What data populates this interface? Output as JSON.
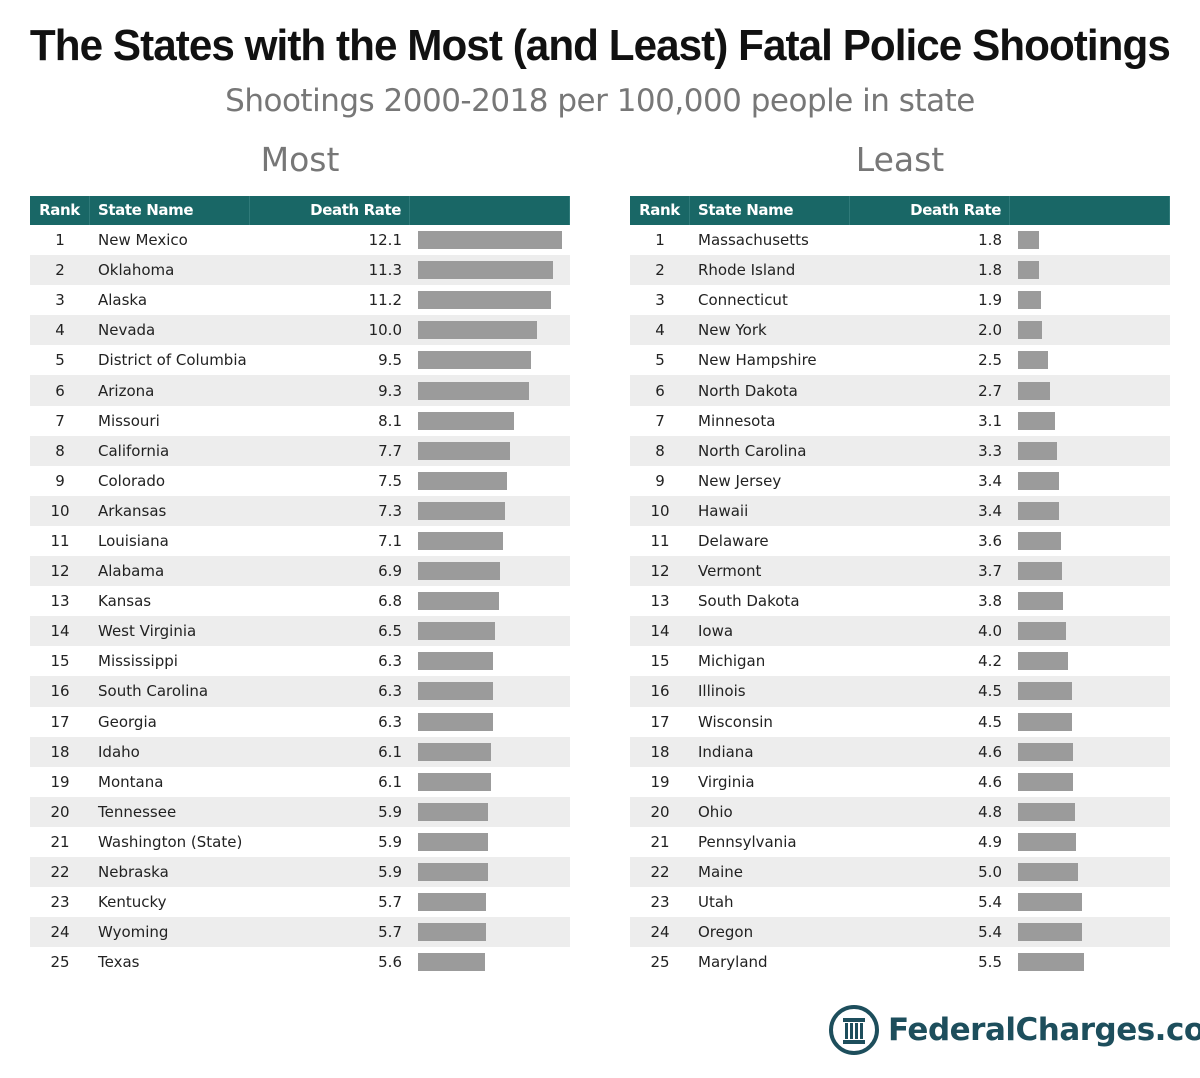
{
  "title": "The States with the Most (and Least) Fatal Police Shootings",
  "subtitle": "Shootings 2000-2018 per 100,000 people in state",
  "logo": "FederalCharges.com",
  "colors": {
    "header": "#196766",
    "bar": "#9b9b9b",
    "stripe": "#ededed",
    "logo": "#1d4e5c"
  },
  "chart_data": [
    {
      "type": "table",
      "title": "Most",
      "columns": [
        "Rank",
        "State Name",
        "Death Rate",
        ""
      ],
      "rows": [
        {
          "rank": "1",
          "state": "New Mexico",
          "rate": "12.1"
        },
        {
          "rank": "2",
          "state": "Oklahoma",
          "rate": "11.3"
        },
        {
          "rank": "3",
          "state": "Alaska",
          "rate": "11.2"
        },
        {
          "rank": "4",
          "state": "Nevada",
          "rate": "10.0"
        },
        {
          "rank": "5",
          "state": "District of Columbia",
          "rate": "9.5"
        },
        {
          "rank": "6",
          "state": "Arizona",
          "rate": "9.3"
        },
        {
          "rank": "7",
          "state": "Missouri",
          "rate": "8.1"
        },
        {
          "rank": "8",
          "state": "California",
          "rate": "7.7"
        },
        {
          "rank": "9",
          "state": "Colorado",
          "rate": "7.5"
        },
        {
          "rank": "10",
          "state": "Arkansas",
          "rate": "7.3"
        },
        {
          "rank": "11",
          "state": "Louisiana",
          "rate": "7.1"
        },
        {
          "rank": "12",
          "state": "Alabama",
          "rate": "6.9"
        },
        {
          "rank": "13",
          "state": "Kansas",
          "rate": "6.8"
        },
        {
          "rank": "14",
          "state": "West Virginia",
          "rate": "6.5"
        },
        {
          "rank": "15",
          "state": "Mississippi",
          "rate": "6.3"
        },
        {
          "rank": "16",
          "state": "South Carolina",
          "rate": "6.3"
        },
        {
          "rank": "17",
          "state": "Georgia",
          "rate": "6.3"
        },
        {
          "rank": "18",
          "state": "Idaho",
          "rate": "6.1"
        },
        {
          "rank": "19",
          "state": "Montana",
          "rate": "6.1"
        },
        {
          "rank": "20",
          "state": "Tennessee",
          "rate": "5.9"
        },
        {
          "rank": "21",
          "state": "Washington (State)",
          "rate": "5.9"
        },
        {
          "rank": "22",
          "state": "Nebraska",
          "rate": "5.9"
        },
        {
          "rank": "23",
          "state": "Kentucky",
          "rate": "5.7"
        },
        {
          "rank": "24",
          "state": "Wyoming",
          "rate": "5.7"
        },
        {
          "rank": "25",
          "state": "Texas",
          "rate": "5.6"
        }
      ]
    },
    {
      "type": "table",
      "title": "Least",
      "columns": [
        "Rank",
        "State Name",
        "Death Rate",
        ""
      ],
      "rows": [
        {
          "rank": "1",
          "state": "Massachusetts",
          "rate": "1.8"
        },
        {
          "rank": "2",
          "state": "Rhode Island",
          "rate": "1.8"
        },
        {
          "rank": "3",
          "state": "Connecticut",
          "rate": "1.9"
        },
        {
          "rank": "4",
          "state": "New York",
          "rate": "2.0"
        },
        {
          "rank": "5",
          "state": "New Hampshire",
          "rate": "2.5"
        },
        {
          "rank": "6",
          "state": "North Dakota",
          "rate": "2.7"
        },
        {
          "rank": "7",
          "state": "Minnesota",
          "rate": "3.1"
        },
        {
          "rank": "8",
          "state": "North Carolina",
          "rate": "3.3"
        },
        {
          "rank": "9",
          "state": "New Jersey",
          "rate": "3.4"
        },
        {
          "rank": "10",
          "state": "Hawaii",
          "rate": "3.4"
        },
        {
          "rank": "11",
          "state": "Delaware",
          "rate": "3.6"
        },
        {
          "rank": "12",
          "state": "Vermont",
          "rate": "3.7"
        },
        {
          "rank": "13",
          "state": "South Dakota",
          "rate": "3.8"
        },
        {
          "rank": "14",
          "state": "Iowa",
          "rate": "4.0"
        },
        {
          "rank": "15",
          "state": "Michigan",
          "rate": "4.2"
        },
        {
          "rank": "16",
          "state": "Illinois",
          "rate": "4.5"
        },
        {
          "rank": "17",
          "state": "Wisconsin",
          "rate": "4.5"
        },
        {
          "rank": "18",
          "state": "Indiana",
          "rate": "4.6"
        },
        {
          "rank": "19",
          "state": "Virginia",
          "rate": "4.6"
        },
        {
          "rank": "20",
          "state": "Ohio",
          "rate": "4.8"
        },
        {
          "rank": "21",
          "state": "Pennsylvania",
          "rate": "4.9"
        },
        {
          "rank": "22",
          "state": "Maine",
          "rate": "5.0"
        },
        {
          "rank": "23",
          "state": "Utah",
          "rate": "5.4"
        },
        {
          "rank": "24",
          "state": "Oregon",
          "rate": "5.4"
        },
        {
          "rank": "25",
          "state": "Maryland",
          "rate": "5.5"
        }
      ]
    }
  ]
}
